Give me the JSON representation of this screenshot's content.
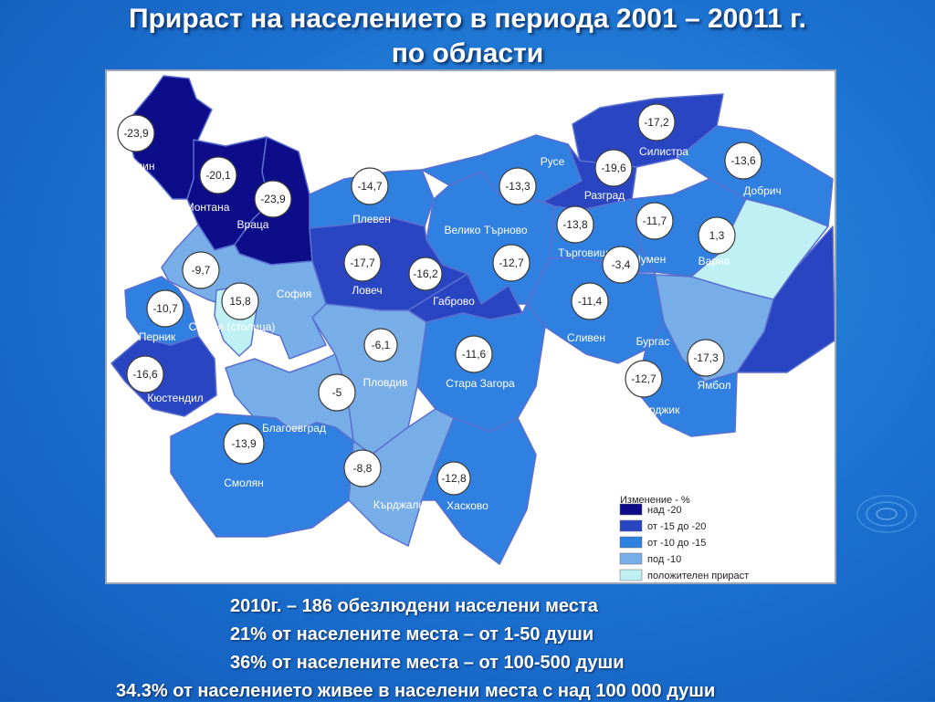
{
  "title": {
    "line1": "Прираст на населението в периода 2001 – 20011 г.",
    "line2": "по области"
  },
  "colors": {
    "over_20": "#0d0d8a",
    "from_15_to_20": "#2a45c2",
    "from_10_to_15": "#2f80e0",
    "under_10": "#78aee8",
    "positive": "#bff0f3",
    "border": "#5a6fd0",
    "bubble_fill": "#ffffff",
    "bubble_stroke": "#3c3c3c"
  },
  "regions": [
    {
      "name": "Видин",
      "value": "-23,9",
      "category": "over_20"
    },
    {
      "name": "Монтана",
      "value": "-20,1",
      "category": "over_20"
    },
    {
      "name": "Враца",
      "value": "-23,9",
      "category": "over_20"
    },
    {
      "name": "Плевен",
      "value": "-14,7",
      "category": "from_10_to_15"
    },
    {
      "name": "Русе",
      "value": "-13,3",
      "category": "from_10_to_15"
    },
    {
      "name": "Силистра",
      "value": "-17,2",
      "category": "from_15_to_20"
    },
    {
      "name": "Добрич",
      "value": "-13,6",
      "category": "from_10_to_15"
    },
    {
      "name": "Разград",
      "value": "-19,6",
      "category": "from_15_to_20"
    },
    {
      "name": "Велико Търново",
      "value": "-12,7",
      "category": "from_10_to_15"
    },
    {
      "name": "Търговище",
      "value": "-13,8",
      "category": "from_10_to_15"
    },
    {
      "name": "Шумен",
      "value": "-11,7",
      "category": "from_10_to_15"
    },
    {
      "name": "Варна",
      "value": "1,3",
      "category": "positive"
    },
    {
      "name": "Ловеч",
      "value": "-17,7",
      "category": "from_15_to_20"
    },
    {
      "name": "Габрово",
      "value": "-16,2",
      "category": "from_15_to_20"
    },
    {
      "name": "София",
      "value": "-9,7",
      "category": "under_10"
    },
    {
      "name": "София (столица)",
      "value": "15,8",
      "category": "positive"
    },
    {
      "name": "Перник",
      "value": "-10,7",
      "category": "from_10_to_15"
    },
    {
      "name": "Кюстендил",
      "value": "-16,6",
      "category": "from_15_to_20"
    },
    {
      "name": "Пловдив",
      "value": "-6,1",
      "category": "under_10"
    },
    {
      "name": "Стара Загора",
      "value": "-11,6",
      "category": "from_10_to_15"
    },
    {
      "name": "Сливен",
      "value": "-11,4",
      "category": "from_10_to_15"
    },
    {
      "name": "Бургас",
      "value": "-3,4",
      "category": "under_10"
    },
    {
      "name": "Ямбол",
      "value": "-17,3",
      "category": "from_15_to_20"
    },
    {
      "name": "Пазарджик",
      "value": "-12,7",
      "category": "from_10_to_15"
    },
    {
      "name": "Благоевград",
      "value": "-5",
      "category": "under_10"
    },
    {
      "name": "Смолян",
      "value": "-13,9",
      "category": "from_10_to_15"
    },
    {
      "name": "Кърджали",
      "value": "-8,8",
      "category": "under_10"
    },
    {
      "name": "Хасково",
      "value": "-12,8",
      "category": "from_10_to_15"
    }
  ],
  "legend": {
    "title": "Изменение - %",
    "items": [
      {
        "label": "над        -20",
        "category": "over_20"
      },
      {
        "label": "от -15 до -20",
        "category": "from_15_to_20"
      },
      {
        "label": "от -10 до -15",
        "category": "from_10_to_15"
      },
      {
        "label": "под        -10",
        "category": "under_10"
      },
      {
        "label": "положителен прираст",
        "category": "positive"
      }
    ]
  },
  "stats": {
    "line1": "2010г. – 186 обезлюдени населени места",
    "line2": "21%  от населените места – от 1-50 души",
    "line3": "36% от населените места – от 100-500 души",
    "line4": "34.3% от населението живее в населени места с над 100 000 души"
  }
}
